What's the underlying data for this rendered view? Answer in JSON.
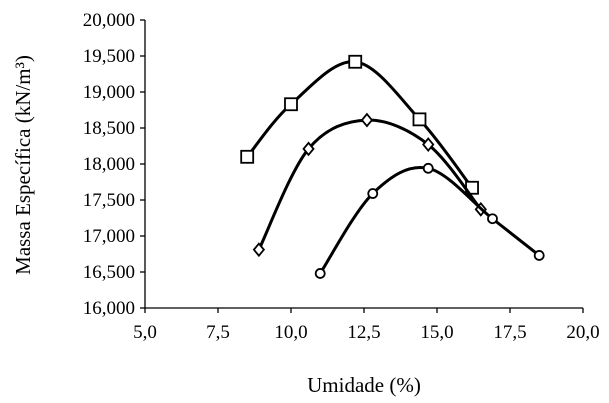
{
  "chart_data": {
    "type": "line",
    "xlabel": "Umidade (%)",
    "ylabel": "Massa Específica (kN/m³)",
    "xlim": [
      5.0,
      20.0
    ],
    "ylim": [
      16000,
      20000
    ],
    "x_ticks": [
      "5,0",
      "7,5",
      "10,0",
      "12,5",
      "15,0",
      "17,5",
      "20,0"
    ],
    "y_ticks": [
      "16,000",
      "16,500",
      "17,000",
      "17,500",
      "18,000",
      "18,500",
      "19,000",
      "19,500",
      "20,000"
    ],
    "grid": false,
    "series": [
      {
        "marker": "square",
        "points": [
          {
            "x": 8.5,
            "y": 18100
          },
          {
            "x": 10.0,
            "y": 18830
          },
          {
            "x": 12.2,
            "y": 19420
          },
          {
            "x": 14.4,
            "y": 18620
          },
          {
            "x": 16.2,
            "y": 17670
          }
        ]
      },
      {
        "marker": "diamond",
        "points": [
          {
            "x": 8.9,
            "y": 16810
          },
          {
            "x": 10.6,
            "y": 18210
          },
          {
            "x": 12.6,
            "y": 18610
          },
          {
            "x": 14.7,
            "y": 18270
          },
          {
            "x": 16.5,
            "y": 17370
          }
        ]
      },
      {
        "marker": "circle",
        "points": [
          {
            "x": 11.0,
            "y": 16480
          },
          {
            "x": 12.8,
            "y": 17590
          },
          {
            "x": 14.7,
            "y": 17940
          },
          {
            "x": 16.9,
            "y": 17240
          },
          {
            "x": 18.5,
            "y": 16730
          }
        ]
      }
    ]
  }
}
